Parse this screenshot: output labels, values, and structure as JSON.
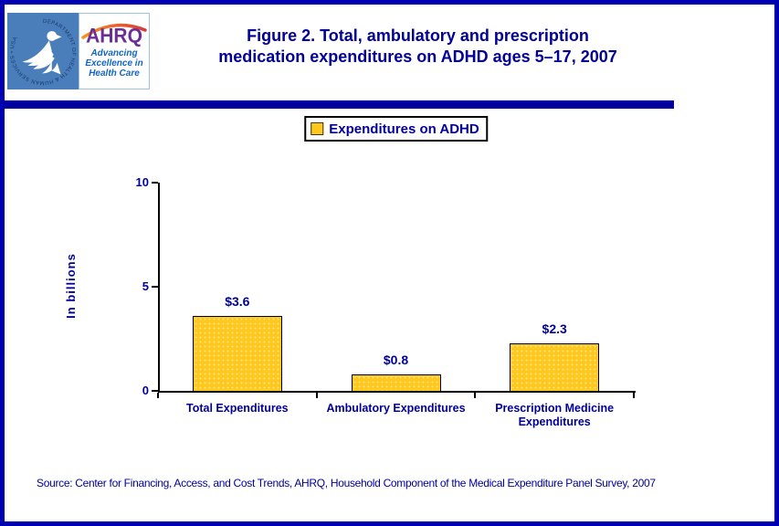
{
  "header": {
    "title_line1": "Figure 2. Total, ambulatory and prescription",
    "title_line2": "medication expenditures on ADHD ages 5–17, 2007"
  },
  "logo": {
    "hhs_ring_text": "DEPARTMENT OF HEALTH & HUMAN SERVICES • USA",
    "ahrq_acronym": "AHRQ",
    "tagline": [
      "Advancing",
      "Excellence in",
      "Health Care"
    ]
  },
  "legend": {
    "label": "Expenditures on ADHD",
    "swatch_color": "#FFC81E"
  },
  "chart_data": {
    "type": "bar",
    "title": "Figure 2. Total, ambulatory and prescription medication expenditures on ADHD ages 5–17, 2007",
    "categories": [
      "Total Expenditures",
      "Ambulatory Expenditures",
      "Prescription Medicine Expenditures"
    ],
    "values": [
      3.6,
      0.8,
      2.3
    ],
    "data_labels": [
      "$3.6",
      "$0.8",
      "$2.3"
    ],
    "xlabel": "",
    "ylabel": "In billions",
    "ylim": [
      0,
      10
    ],
    "yticks": [
      0,
      5,
      10
    ],
    "legend_entries": [
      "Expenditures on ADHD"
    ],
    "legend_position": "top-center",
    "grid": false,
    "bar_color": "#FFC81E"
  },
  "footer": {
    "source": "Source: Center for Financing, Access, and Cost Trends, AHRQ, Household Component of the Medical Expenditure Panel Survey, 2007"
  },
  "colors": {
    "navy_text": "#000099",
    "page_border": "#0000B3",
    "divider_bar": "#0000A0",
    "bar_fill": "#FFC81E",
    "hhs_logo_blue": "#4A7EBB",
    "ahrq_purple": "#6B2E94",
    "tagline_blue": "#1265C0",
    "arc_orange": "#F7941D",
    "arc_red": "#D93A3A"
  }
}
